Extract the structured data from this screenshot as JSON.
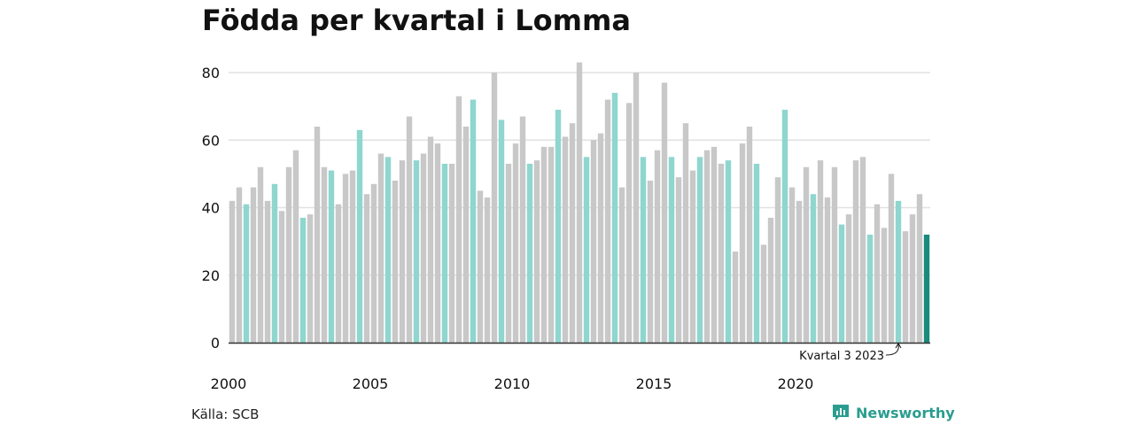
{
  "colors": {
    "default": "#c8c8c8",
    "q3": "#8fd6cf",
    "latest": "#1a8a7d",
    "grid": "#e2e2e2",
    "axis": "#333333",
    "brand": "#2a9d8f"
  },
  "source": "Källa: SCB",
  "brand": {
    "name": "Newsworthy",
    "icon": "chart-logo-icon"
  },
  "chart_data": {
    "type": "bar",
    "title": "Födda per kvartal i Lomma",
    "xlabel": "",
    "ylabel": "",
    "ylim": [
      0,
      80
    ],
    "yticks": [
      0,
      20,
      40,
      60,
      80
    ],
    "grid": true,
    "xticks": [
      {
        "label": "2000",
        "index": 0
      },
      {
        "label": "2005",
        "index": 20
      },
      {
        "label": "2010",
        "index": 40
      },
      {
        "label": "2015",
        "index": 60
      },
      {
        "label": "2020",
        "index": 80
      }
    ],
    "annotation": {
      "text": "Kvartal 3 2023",
      "index": 94
    },
    "start_year": 2000,
    "values": [
      42,
      46,
      41,
      46,
      52,
      42,
      47,
      39,
      52,
      57,
      37,
      38,
      64,
      52,
      51,
      41,
      50,
      51,
      63,
      44,
      47,
      56,
      55,
      48,
      54,
      67,
      54,
      56,
      61,
      59,
      53,
      53,
      73,
      64,
      72,
      45,
      43,
      80,
      66,
      53,
      59,
      67,
      53,
      54,
      58,
      58,
      69,
      61,
      65,
      83,
      55,
      60,
      62,
      72,
      74,
      46,
      71,
      80,
      55,
      48,
      57,
      77,
      55,
      49,
      65,
      51,
      55,
      57,
      58,
      53,
      54,
      27,
      59,
      64,
      53,
      29,
      37,
      49,
      69,
      46,
      42,
      52,
      44,
      54,
      43,
      52,
      35,
      38,
      54,
      55,
      32,
      41,
      34,
      50,
      42,
      33,
      38,
      44,
      32
    ]
  }
}
